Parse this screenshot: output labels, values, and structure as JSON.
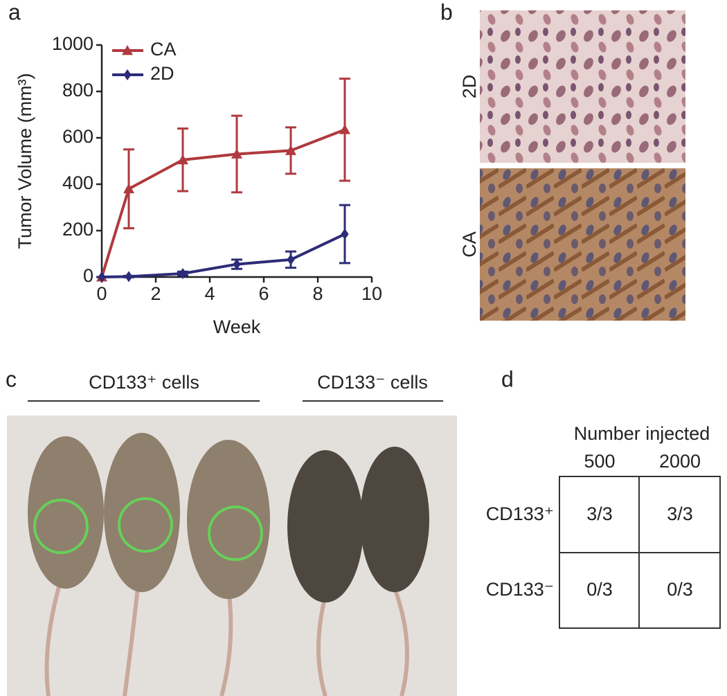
{
  "panel_labels": [
    "a",
    "b",
    "c",
    "d"
  ],
  "chart_data": {
    "type": "line",
    "x_label": "Week",
    "y_label": "Tumor Volume (mm³)",
    "x": [
      0,
      1,
      3,
      5,
      7,
      9
    ],
    "series": [
      {
        "name": "CA",
        "color": "#b03a3e",
        "marker": "triangle",
        "values": [
          0,
          380,
          505,
          530,
          545,
          635
        ],
        "errors": [
          0,
          170,
          135,
          165,
          100,
          220
        ]
      },
      {
        "name": "2D",
        "color": "#2d2c78",
        "marker": "diamond",
        "values": [
          0,
          2,
          15,
          55,
          75,
          185
        ],
        "errors": [
          0,
          3,
          8,
          20,
          35,
          125
        ]
      }
    ],
    "xlim": [
      0,
      10
    ],
    "xticks": [
      0,
      2,
      4,
      6,
      8,
      10
    ],
    "ylim": [
      0,
      1000
    ],
    "yticks": [
      0,
      200,
      400,
      600,
      800,
      1000
    ],
    "legend": "upper left"
  },
  "images": {
    "row_labels": [
      "2D",
      "CA"
    ]
  },
  "photo": {
    "groups": [
      "CD133⁺ cells",
      "CD133⁻ cells"
    ]
  },
  "table": {
    "title": "Number injected",
    "columns": [
      "500",
      "2000"
    ],
    "rows": [
      {
        "label": "CD133⁺",
        "cells": [
          "3/3",
          "3/3"
        ]
      },
      {
        "label": "CD133⁻",
        "cells": [
          "0/3",
          "0/3"
        ]
      }
    ]
  }
}
